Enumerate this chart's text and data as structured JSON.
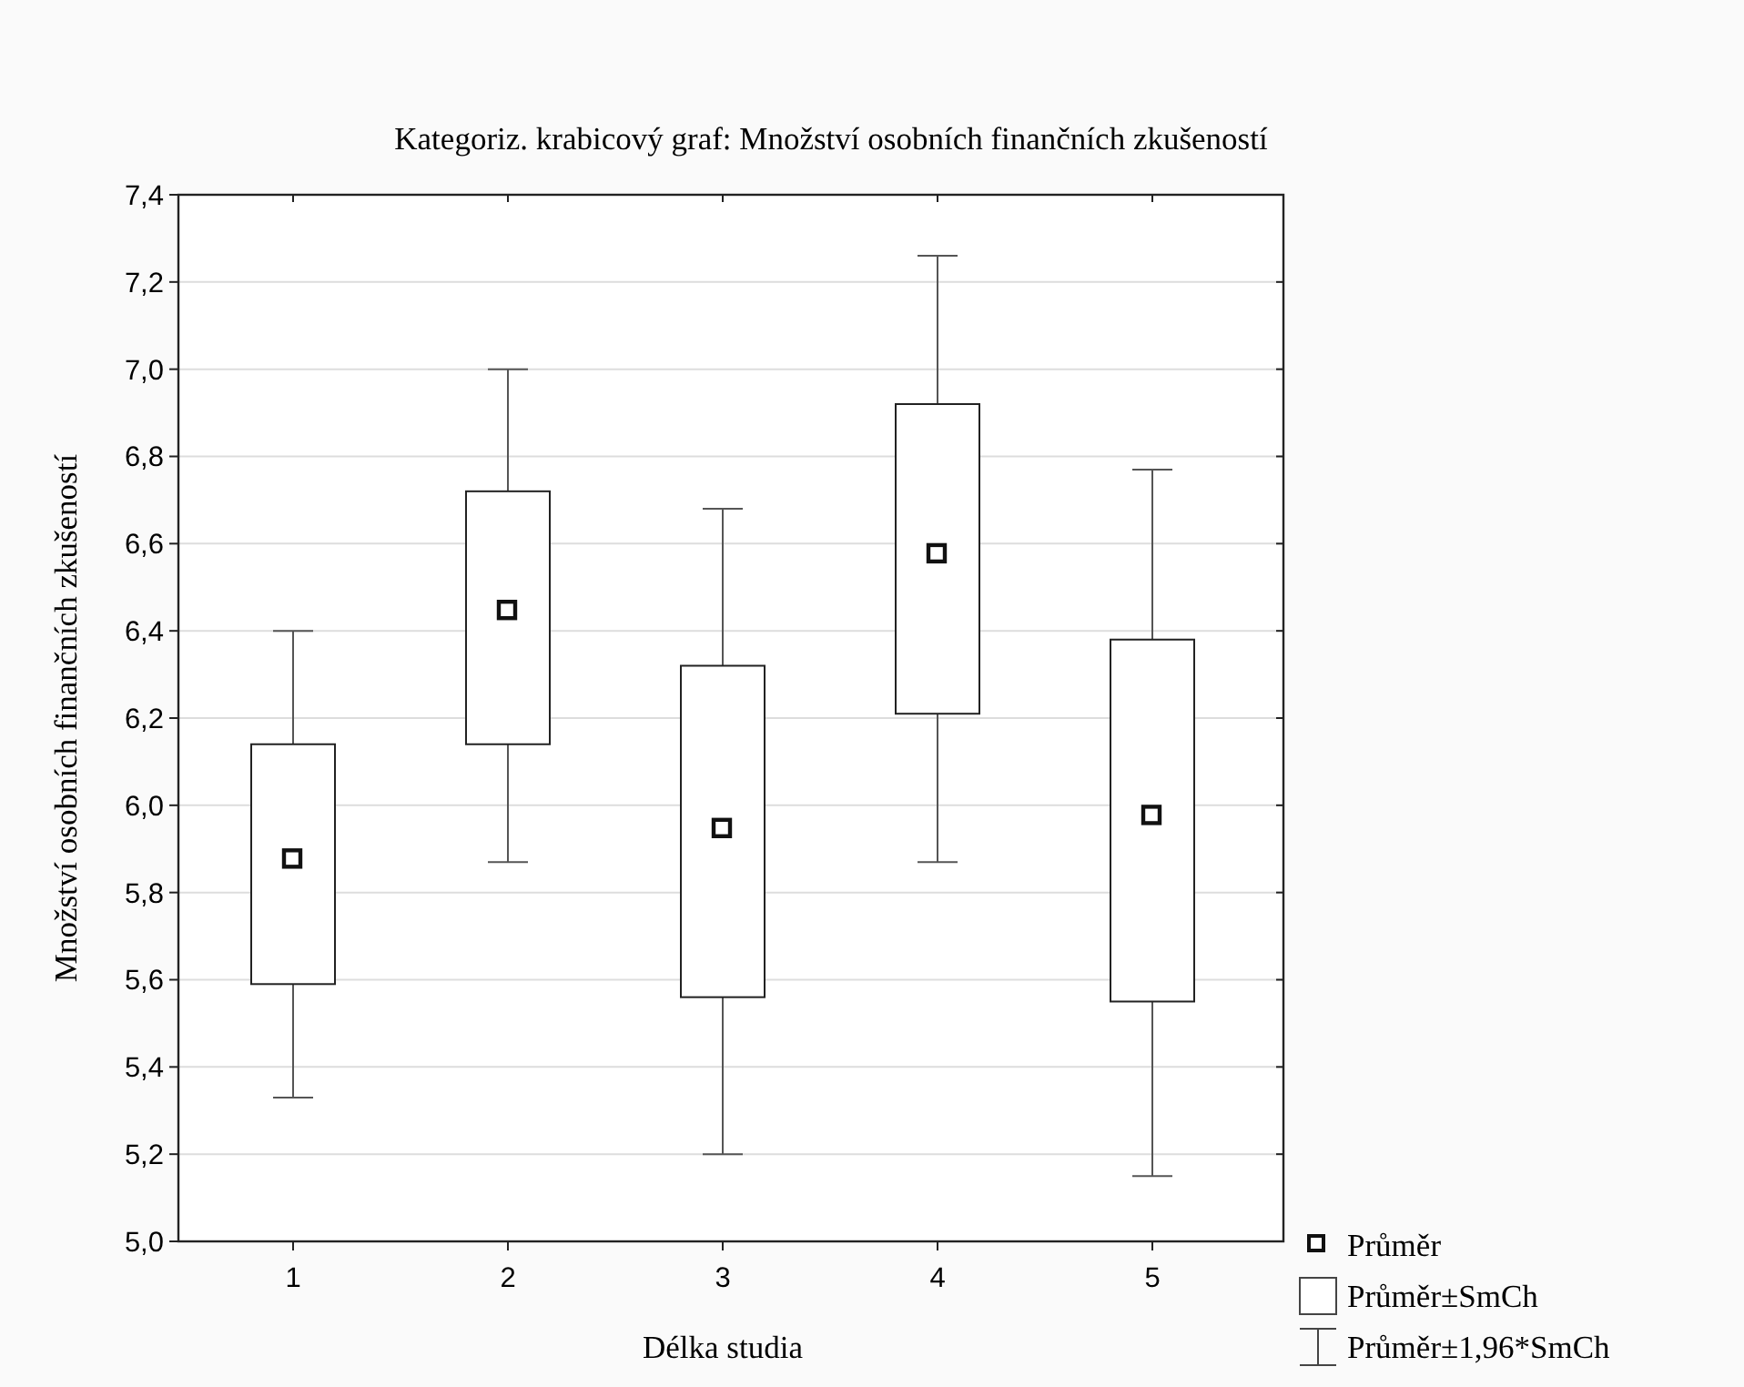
{
  "chart_data": {
    "type": "box",
    "title": "Kategoriz. krabicový graf: Množství osobních finančních zkušeností",
    "xlabel": "Délka studia",
    "ylabel": "Množství osobních finančních zkušeností",
    "categories": [
      "1",
      "2",
      "3",
      "4",
      "5"
    ],
    "boxes": [
      {
        "low": 5.33,
        "q1": 5.59,
        "median": 5.88,
        "q3": 6.14,
        "high": 6.4
      },
      {
        "low": 5.87,
        "q1": 6.14,
        "median": 6.45,
        "q3": 6.72,
        "high": 7.0
      },
      {
        "low": 5.2,
        "q1": 5.56,
        "median": 5.95,
        "q3": 6.32,
        "high": 6.68
      },
      {
        "low": 5.87,
        "q1": 6.21,
        "median": 6.58,
        "q3": 6.92,
        "high": 7.26
      },
      {
        "low": 5.15,
        "q1": 5.55,
        "median": 5.98,
        "q3": 6.38,
        "high": 6.77
      }
    ],
    "ylim": [
      5.0,
      7.4
    ],
    "yticks": [
      {
        "value": 5.0,
        "label": "5,0"
      },
      {
        "value": 5.2,
        "label": "5,2"
      },
      {
        "value": 5.4,
        "label": "5,4"
      },
      {
        "value": 5.6,
        "label": "5,6"
      },
      {
        "value": 5.8,
        "label": "5,8"
      },
      {
        "value": 6.0,
        "label": "6,0"
      },
      {
        "value": 6.2,
        "label": "6,2"
      },
      {
        "value": 6.4,
        "label": "6,4"
      },
      {
        "value": 6.6,
        "label": "6,6"
      },
      {
        "value": 6.8,
        "label": "6,8"
      },
      {
        "value": 7.0,
        "label": "7,0"
      },
      {
        "value": 7.2,
        "label": "7,2"
      },
      {
        "value": 7.4,
        "label": "7,4"
      }
    ],
    "grid": "y",
    "annotations": [
      "Průměr",
      "Průměr±SmCh",
      "Průměr±1,96*SmCh"
    ]
  }
}
